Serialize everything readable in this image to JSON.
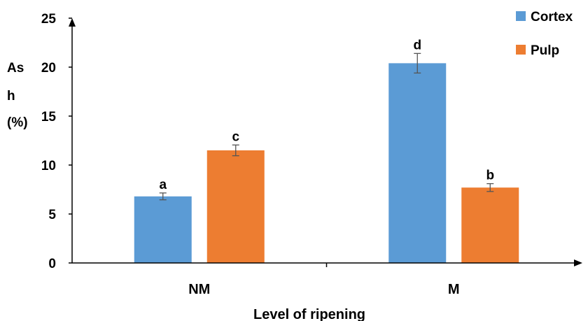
{
  "chart_data": {
    "type": "bar",
    "categories": [
      "NM",
      "M"
    ],
    "series": [
      {
        "name": "Cortex",
        "color": "#5B9BD5",
        "values": [
          6.8,
          20.4
        ],
        "errors": [
          0.35,
          1.0
        ],
        "letters": [
          "a",
          "d"
        ]
      },
      {
        "name": "Pulp",
        "color": "#ED7D31",
        "values": [
          11.5,
          7.7
        ],
        "errors": [
          0.55,
          0.4
        ],
        "letters": [
          "c",
          "b"
        ]
      }
    ],
    "ylim": [
      0,
      25
    ],
    "yticks": [
      "0",
      "5",
      "10",
      "15",
      "20",
      "25"
    ],
    "ylabel_lines": [
      "As",
      "h",
      "(%)"
    ],
    "xlabel": "Level of ripening",
    "legend_position": "top-right",
    "grid": false
  }
}
